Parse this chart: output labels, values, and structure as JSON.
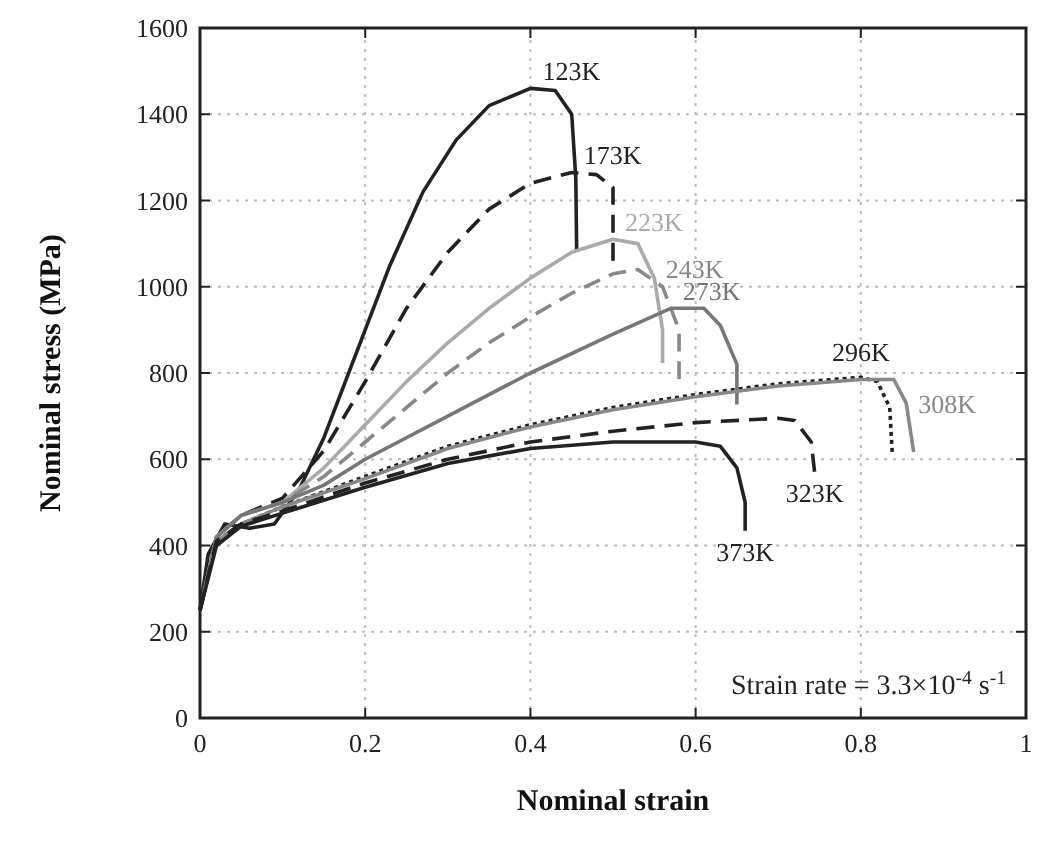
{
  "chart_data": {
    "type": "line",
    "xlabel": "Nominal strain",
    "ylabel": "Nominal stress (MPa)",
    "xlim": [
      0,
      1
    ],
    "xticks": [
      0,
      0.2,
      0.4,
      0.6,
      0.8,
      1
    ],
    "ylim": [
      0,
      1600
    ],
    "yticks": [
      0,
      200,
      400,
      600,
      800,
      1000,
      1200,
      1400,
      1600
    ],
    "grid": true,
    "marker": "none",
    "series": [
      {
        "name": "123K",
        "color": "#222222",
        "line_style": "solid",
        "x": [
          0,
          0.01,
          0.03,
          0.06,
          0.09,
          0.12,
          0.15,
          0.19,
          0.23,
          0.27,
          0.31,
          0.35,
          0.4,
          0.43,
          0.45,
          0.455,
          0.456
        ],
        "values": [
          250,
          380,
          450,
          440,
          450,
          530,
          650,
          850,
          1050,
          1220,
          1340,
          1420,
          1460,
          1455,
          1400,
          1250,
          1083
        ]
      },
      {
        "name": "173K",
        "color": "#222222",
        "line_style": "dashed",
        "x": [
          0,
          0.02,
          0.05,
          0.1,
          0.15,
          0.2,
          0.25,
          0.3,
          0.35,
          0.4,
          0.45,
          0.48,
          0.5,
          0.5
        ],
        "values": [
          250,
          420,
          470,
          510,
          620,
          780,
          950,
          1080,
          1180,
          1240,
          1265,
          1260,
          1230,
          1060
        ]
      },
      {
        "name": "223K",
        "color": "#aaaaaa",
        "line_style": "solid",
        "x": [
          0,
          0.02,
          0.05,
          0.1,
          0.15,
          0.2,
          0.25,
          0.3,
          0.35,
          0.4,
          0.45,
          0.5,
          0.53,
          0.55,
          0.56,
          0.56
        ],
        "values": [
          250,
          420,
          470,
          500,
          580,
          680,
          780,
          870,
          950,
          1020,
          1080,
          1110,
          1100,
          1020,
          900,
          823
        ]
      },
      {
        "name": "243K",
        "color": "#888888",
        "line_style": "dashed",
        "x": [
          0,
          0.02,
          0.05,
          0.1,
          0.15,
          0.2,
          0.25,
          0.3,
          0.35,
          0.4,
          0.45,
          0.5,
          0.53,
          0.56,
          0.58,
          0.58
        ],
        "values": [
          250,
          420,
          470,
          500,
          560,
          640,
          720,
          800,
          870,
          930,
          985,
          1030,
          1040,
          1000,
          900,
          786
        ]
      },
      {
        "name": "273K",
        "color": "#777777",
        "line_style": "solid",
        "x": [
          0,
          0.02,
          0.05,
          0.1,
          0.15,
          0.2,
          0.3,
          0.4,
          0.5,
          0.57,
          0.61,
          0.63,
          0.65,
          0.65
        ],
        "values": [
          250,
          420,
          470,
          500,
          540,
          600,
          700,
          800,
          890,
          950,
          950,
          910,
          820,
          727
        ]
      },
      {
        "name": "296K",
        "color": "#222222",
        "line_style": "dotted",
        "x": [
          0,
          0.02,
          0.05,
          0.1,
          0.2,
          0.3,
          0.4,
          0.5,
          0.6,
          0.7,
          0.8,
          0.82,
          0.835,
          0.838
        ],
        "values": [
          250,
          410,
          450,
          490,
          560,
          630,
          680,
          720,
          750,
          775,
          790,
          780,
          720,
          617
        ]
      },
      {
        "name": "308K",
        "color": "#888888",
        "line_style": "solid",
        "x": [
          0,
          0.02,
          0.05,
          0.1,
          0.2,
          0.3,
          0.4,
          0.5,
          0.6,
          0.7,
          0.8,
          0.84,
          0.855,
          0.864
        ],
        "values": [
          250,
          410,
          450,
          490,
          555,
          625,
          675,
          715,
          745,
          770,
          785,
          785,
          730,
          617
        ]
      },
      {
        "name": "323K",
        "color": "#222222",
        "line_style": "dashed",
        "x": [
          0,
          0.02,
          0.05,
          0.1,
          0.2,
          0.3,
          0.4,
          0.5,
          0.6,
          0.7,
          0.72,
          0.74,
          0.744
        ],
        "values": [
          250,
          410,
          450,
          480,
          545,
          600,
          640,
          665,
          685,
          695,
          690,
          640,
          571
        ]
      },
      {
        "name": "373K",
        "color": "#222222",
        "line_style": "solid",
        "x": [
          0,
          0.02,
          0.05,
          0.1,
          0.2,
          0.3,
          0.4,
          0.5,
          0.6,
          0.63,
          0.65,
          0.66,
          0.66
        ],
        "values": [
          250,
          400,
          445,
          475,
          535,
          590,
          625,
          640,
          640,
          630,
          580,
          500,
          434
        ]
      }
    ],
    "annotations": [
      "Strain rate = 3.3×10$^{-4}$ s$^{-1}$"
    ]
  }
}
